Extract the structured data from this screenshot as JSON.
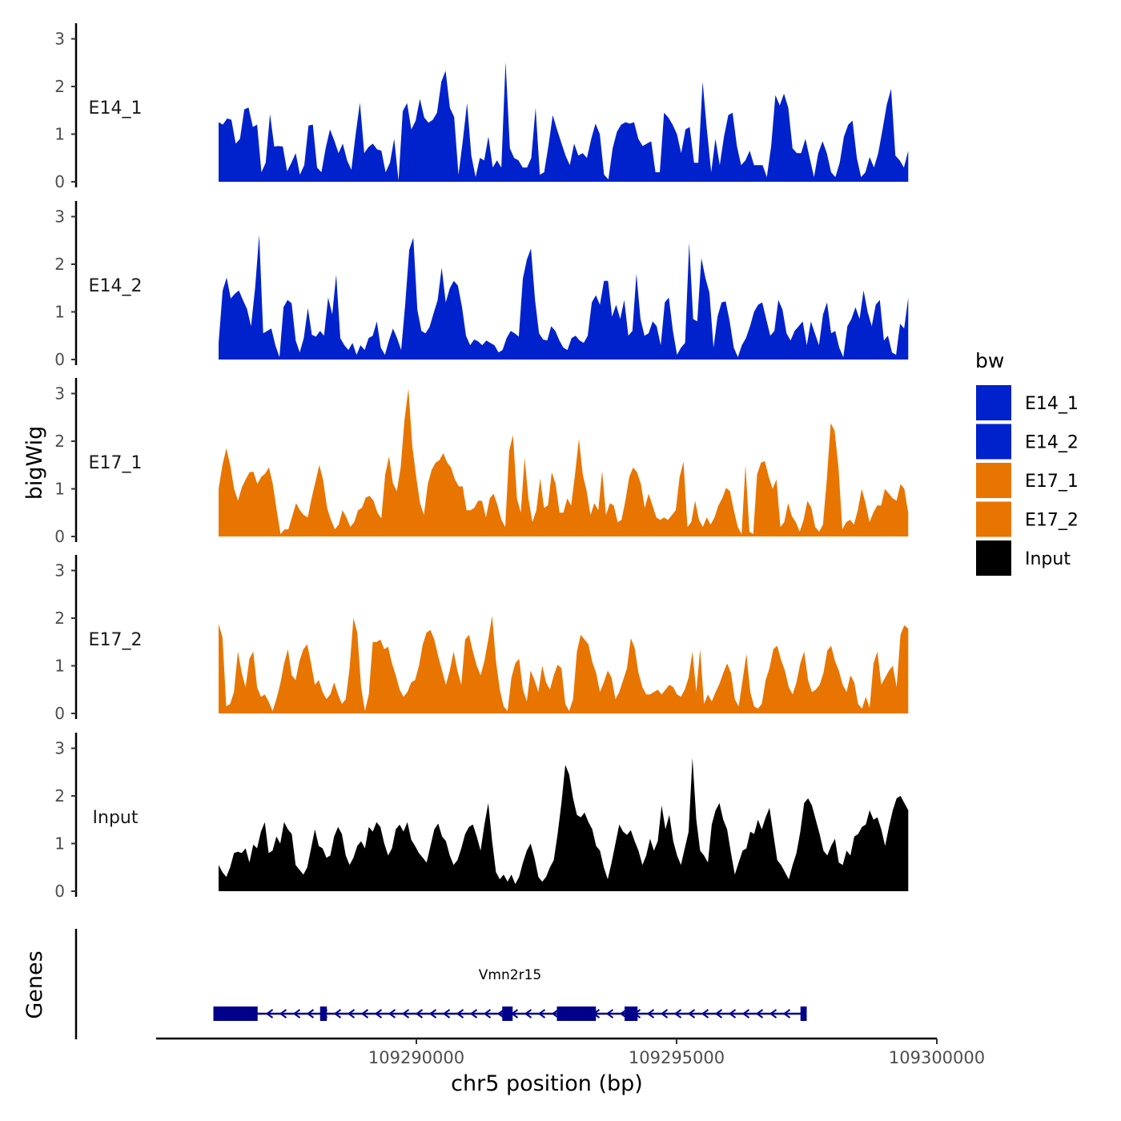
{
  "chart_data": {
    "type": "area",
    "ylabel": "bigWig",
    "xlabel": "chr5 position (bp)",
    "ylim": [
      0,
      3.2
    ],
    "yticks": [
      0,
      1,
      2,
      3
    ],
    "xlim": [
      109285000,
      109300000
    ],
    "xticks": [
      109290000,
      109295000,
      109300000
    ],
    "x_tick_labels": [
      "109290000",
      "109295000",
      "109300000"
    ],
    "x_start": 109286200,
    "x_end": 109299450,
    "legend": {
      "title": "bw",
      "placement": "right",
      "entries": [
        {
          "label": "E14_1",
          "color": "#0022CC"
        },
        {
          "label": "E14_2",
          "color": "#0022CC"
        },
        {
          "label": "E17_1",
          "color": "#E87500"
        },
        {
          "label": "E17_2",
          "color": "#E87500"
        },
        {
          "label": "Input",
          "color": "#000000"
        }
      ]
    },
    "series": [
      {
        "name": "E14_1",
        "color": "#0022CC",
        "values": [
          1.25,
          1.2,
          1.33,
          1.3,
          0.8,
          0.9,
          1.52,
          1.56,
          1.15,
          1.2,
          0.2,
          0.4,
          1.42,
          0.74,
          0.75,
          0.74,
          0.22,
          0.4,
          0.6,
          0.15,
          0.35,
          1.18,
          1.2,
          0.3,
          0.2,
          0.7,
          1.1,
          0.87,
          0.6,
          0.8,
          0.45,
          0.25,
          1.0,
          1.66,
          0.6,
          0.73,
          0.8,
          0.68,
          0.65,
          0.2,
          0.4,
          0.9,
          0.02,
          1.48,
          1.65,
          1.1,
          1.28,
          1.74,
          1.35,
          1.24,
          1.3,
          1.45,
          2.1,
          2.33,
          1.55,
          1.36,
          0.15,
          0.85,
          1.65,
          0.55,
          0.1,
          0.5,
          0.45,
          0.95,
          0.3,
          0.45,
          0.3,
          2.52,
          0.7,
          0.5,
          0.45,
          0.3,
          0.3,
          0.5,
          1.55,
          0.15,
          0.2,
          0.75,
          1.4,
          1.1,
          0.82,
          0.55,
          0.35,
          0.8,
          0.55,
          0.6,
          0.5,
          0.9,
          1.22,
          1.0,
          0.15,
          0.05,
          0.7,
          1.05,
          1.2,
          1.25,
          1.22,
          1.25,
          0.9,
          0.75,
          0.8,
          0.85,
          0.2,
          0.2,
          1.45,
          1.35,
          1.2,
          1.0,
          0.6,
          1.1,
          1.15,
          0.4,
          0.4,
          2.1,
          1.1,
          0.2,
          0.9,
          0.35,
          0.95,
          1.4,
          1.45,
          0.75,
          0.35,
          0.45,
          0.65,
          0.35,
          0.35,
          0.35,
          0.1,
          0.75,
          1.82,
          1.6,
          1.85,
          1.55,
          0.7,
          0.6,
          0.6,
          0.9,
          0.5,
          0.1,
          0.6,
          0.85,
          0.6,
          0.2,
          0.1,
          0.4,
          0.95,
          1.2,
          1.28,
          0.5,
          0.1,
          0.2,
          0.52,
          0.3,
          0.6,
          1.1,
          1.62,
          1.95,
          0.55,
          0.45,
          0.3,
          0.65
        ],
        "display_label": "E14_1"
      },
      {
        "name": "E14_2",
        "color": "#0022CC",
        "values": [
          0.35,
          1.45,
          1.72,
          1.28,
          1.38,
          1.45,
          1.25,
          1.06,
          0.7,
          1.5,
          2.62,
          0.55,
          0.6,
          0.65,
          0.3,
          0.05,
          1.1,
          1.25,
          1.18,
          0.4,
          0.15,
          0.45,
          1.08,
          0.52,
          0.48,
          0.6,
          0.5,
          1.3,
          0.95,
          1.78,
          0.45,
          0.3,
          0.2,
          0.35,
          0.1,
          0.3,
          0.2,
          0.45,
          0.5,
          0.8,
          0.25,
          0.1,
          0.4,
          0.65,
          0.45,
          0.2,
          1.15,
          2.3,
          2.56,
          1.05,
          0.6,
          0.55,
          0.68,
          0.97,
          1.25,
          1.93,
          1.2,
          1.5,
          1.65,
          1.55,
          1.1,
          0.5,
          0.3,
          0.42,
          0.38,
          0.3,
          0.4,
          0.35,
          0.3,
          0.15,
          0.2,
          0.45,
          0.6,
          0.55,
          0.48,
          1.7,
          2.1,
          2.33,
          1.25,
          0.55,
          0.42,
          0.4,
          0.7,
          0.6,
          0.4,
          0.25,
          0.2,
          0.45,
          0.5,
          0.4,
          0.35,
          0.5,
          1.2,
          1.35,
          1.15,
          1.65,
          1.65,
          0.9,
          1.15,
          0.85,
          1.25,
          0.5,
          0.6,
          1.8,
          0.85,
          0.5,
          0.55,
          0.8,
          0.7,
          0.3,
          1.2,
          1.3,
          0.6,
          0.1,
          0.25,
          0.35,
          2.45,
          0.85,
          0.8,
          2.13,
          1.72,
          1.4,
          0.25,
          0.9,
          1.2,
          1.22,
          0.8,
          0.25,
          0.05,
          0.3,
          0.45,
          0.7,
          1.0,
          1.15,
          1.2,
          0.85,
          0.5,
          0.6,
          1.25,
          1.05,
          0.55,
          0.4,
          0.6,
          0.7,
          0.8,
          0.3,
          0.8,
          0.55,
          0.3,
          0.95,
          1.2,
          0.55,
          0.6,
          0.25,
          0.05,
          0.7,
          0.85,
          1.1,
          0.85,
          1.45,
          1.0,
          0.7,
          1.15,
          1.25,
          0.4,
          0.5,
          0.15,
          0.1,
          0.75,
          0.65,
          1.3
        ],
        "display_label": "E14_2"
      },
      {
        "name": "E17_1",
        "color": "#E87500",
        "values": [
          1.0,
          1.5,
          1.85,
          1.5,
          1.0,
          0.75,
          1.03,
          1.2,
          1.35,
          1.36,
          1.1,
          1.25,
          1.32,
          1.45,
          1.1,
          0.55,
          0.05,
          0.15,
          0.15,
          0.42,
          0.7,
          0.55,
          0.45,
          0.4,
          0.8,
          1.15,
          1.5,
          1.18,
          0.6,
          0.35,
          0.15,
          0.25,
          0.55,
          0.4,
          0.2,
          0.3,
          0.55,
          0.6,
          0.82,
          0.85,
          0.75,
          0.5,
          0.38,
          1.3,
          1.68,
          1.12,
          0.95,
          1.45,
          2.45,
          3.1,
          1.9,
          1.25,
          0.7,
          0.45,
          1.1,
          1.4,
          1.55,
          1.6,
          1.75,
          1.55,
          1.45,
          1.2,
          1.05,
          1.05,
          0.55,
          0.55,
          0.6,
          0.75,
          0.75,
          0.4,
          0.8,
          0.9,
          0.65,
          0.35,
          0.2,
          1.8,
          2.13,
          0.8,
          0.5,
          1.65,
          0.78,
          0.3,
          0.55,
          1.22,
          0.6,
          0.65,
          1.35,
          1.1,
          0.5,
          0.5,
          0.8,
          0.65,
          1.3,
          2.05,
          1.3,
          0.95,
          0.45,
          0.7,
          0.55,
          1.38,
          0.45,
          0.7,
          0.65,
          0.3,
          0.35,
          0.75,
          1.25,
          1.45,
          1.35,
          1.1,
          0.6,
          0.9,
          0.65,
          0.4,
          0.35,
          0.4,
          0.35,
          0.45,
          0.55,
          1.25,
          1.57,
          0.2,
          0.3,
          0.75,
          0.35,
          0.2,
          0.4,
          0.25,
          0.4,
          0.65,
          0.8,
          1.02,
          0.95,
          0.55,
          0.2,
          0.05,
          1.5,
          0.1,
          0.05,
          1.3,
          1.55,
          1.58,
          1.25,
          1.0,
          1.2,
          0.2,
          0.3,
          0.7,
          0.42,
          0.3,
          0.1,
          0.35,
          0.75,
          0.6,
          0.2,
          0.1,
          0.25,
          1.2,
          2.38,
          2.22,
          1.45,
          0.15,
          0.3,
          0.35,
          0.25,
          0.55,
          1.0,
          0.7,
          0.3,
          0.5,
          0.65,
          0.65,
          1.0,
          0.9,
          0.8,
          0.75,
          1.1,
          1.0,
          0.5
        ],
        "display_label": "E17_1"
      },
      {
        "name": "E17_2",
        "color": "#E87500",
        "values": [
          1.88,
          1.6,
          0.15,
          0.2,
          0.45,
          1.3,
          0.85,
          0.55,
          1.15,
          1.3,
          0.55,
          0.35,
          0.4,
          0.25,
          0.05,
          0.3,
          0.62,
          1.05,
          1.35,
          0.8,
          0.7,
          1.1,
          1.35,
          1.45,
          1.05,
          0.6,
          0.7,
          0.45,
          0.3,
          0.4,
          0.65,
          0.4,
          0.2,
          0.3,
          0.95,
          2.0,
          1.7,
          0.55,
          0.05,
          0.4,
          1.5,
          1.5,
          1.55,
          1.35,
          1.4,
          1.05,
          0.8,
          0.5,
          0.35,
          0.45,
          0.65,
          0.7,
          1.0,
          1.45,
          1.7,
          1.75,
          1.55,
          1.2,
          0.9,
          0.6,
          0.9,
          1.3,
          0.9,
          0.6,
          1.55,
          1.65,
          1.3,
          1.0,
          0.8,
          1.1,
          1.55,
          2.05,
          1.1,
          0.5,
          0.15,
          0.05,
          0.75,
          1.05,
          1.15,
          0.5,
          0.25,
          0.9,
          0.7,
          0.45,
          1.0,
          0.65,
          0.5,
          0.8,
          1.02,
          0.95,
          0.2,
          0.05,
          0.3,
          1.3,
          1.65,
          1.55,
          1.45,
          1.08,
          0.85,
          0.45,
          0.65,
          0.9,
          0.75,
          0.3,
          0.45,
          0.7,
          0.95,
          1.58,
          1.38,
          0.85,
          0.55,
          0.4,
          0.4,
          0.45,
          0.5,
          0.4,
          0.5,
          0.6,
          0.55,
          0.4,
          0.35,
          0.5,
          0.75,
          1.3,
          0.45,
          1.35,
          0.2,
          0.4,
          0.25,
          0.45,
          0.62,
          0.85,
          1.05,
          0.85,
          0.3,
          0.15,
          0.7,
          1.25,
          0.45,
          0.15,
          0.1,
          0.2,
          0.7,
          0.95,
          1.35,
          1.42,
          1.12,
          0.9,
          0.55,
          0.4,
          0.65,
          1.05,
          1.3,
          0.7,
          0.45,
          0.5,
          0.6,
          0.85,
          1.32,
          1.42,
          1.1,
          0.9,
          0.6,
          0.45,
          0.8,
          0.65,
          0.2,
          0.1,
          0.35,
          0.12,
          1.05,
          1.3,
          0.6,
          0.75,
          0.9,
          1.0,
          0.55,
          1.65,
          1.85,
          1.78
        ],
        "display_label": "E17_2"
      },
      {
        "name": "Input",
        "color": "#000000",
        "values": [
          0.55,
          0.4,
          0.3,
          0.5,
          0.8,
          0.83,
          0.8,
          0.9,
          0.6,
          0.98,
          0.9,
          1.25,
          1.45,
          0.8,
          0.85,
          1.15,
          1.0,
          1.45,
          1.3,
          1.2,
          0.55,
          0.45,
          0.35,
          0.5,
          0.9,
          1.3,
          0.95,
          0.9,
          0.7,
          0.75,
          1.15,
          1.35,
          1.2,
          0.75,
          0.55,
          0.7,
          0.95,
          1.05,
          0.9,
          1.35,
          1.25,
          1.45,
          1.35,
          1.0,
          0.75,
          0.9,
          1.3,
          1.4,
          1.25,
          1.45,
          1.08,
          0.95,
          0.8,
          0.7,
          0.6,
          0.95,
          1.3,
          1.42,
          1.15,
          1.05,
          0.75,
          0.55,
          0.65,
          0.9,
          1.2,
          1.35,
          1.4,
          1.15,
          0.85,
          1.4,
          1.85,
          1.05,
          0.4,
          0.25,
          0.35,
          0.2,
          0.35,
          0.15,
          0.3,
          0.6,
          0.85,
          1.0,
          0.7,
          0.3,
          0.2,
          0.3,
          0.5,
          0.65,
          1.2,
          1.85,
          2.65,
          2.45,
          1.95,
          1.6,
          1.55,
          1.65,
          1.45,
          1.3,
          0.95,
          0.85,
          0.5,
          0.25,
          0.6,
          1.0,
          1.4,
          1.25,
          1.18,
          1.28,
          1.05,
          0.85,
          0.55,
          0.75,
          1.1,
          0.85,
          1.05,
          1.8,
          1.3,
          1.6,
          1.05,
          0.75,
          0.55,
          0.9,
          1.25,
          2.8,
          1.5,
          0.85,
          0.75,
          0.6,
          1.4,
          1.7,
          1.85,
          1.5,
          1.3,
          0.8,
          0.35,
          0.6,
          0.85,
          0.9,
          1.25,
          1.2,
          1.5,
          1.3,
          1.55,
          1.75,
          1.2,
          0.65,
          0.55,
          0.4,
          0.25,
          0.55,
          0.8,
          1.25,
          1.85,
          1.95,
          1.8,
          1.5,
          1.2,
          0.85,
          0.75,
          0.95,
          1.1,
          0.6,
          0.55,
          0.85,
          0.75,
          1.15,
          1.2,
          1.35,
          1.4,
          1.7,
          1.5,
          1.55,
          1.3,
          0.95,
          1.35,
          1.7,
          1.95,
          2.0,
          1.85,
          1.7
        ],
        "display_label": "Input"
      }
    ],
    "genes_track": {
      "label": "Genes",
      "gene_name": "Vmn2r15",
      "strand": "-",
      "color": "#00008B",
      "start": 109286100,
      "end": 109297500,
      "exons": [
        {
          "start": 109286100,
          "end": 109286950
        },
        {
          "start": 109288150,
          "end": 109288280
        },
        {
          "start": 109291650,
          "end": 109291850
        },
        {
          "start": 109292700,
          "end": 109293450
        },
        {
          "start": 109294000,
          "end": 109294250
        },
        {
          "start": 109297380,
          "end": 109297500
        }
      ]
    }
  }
}
